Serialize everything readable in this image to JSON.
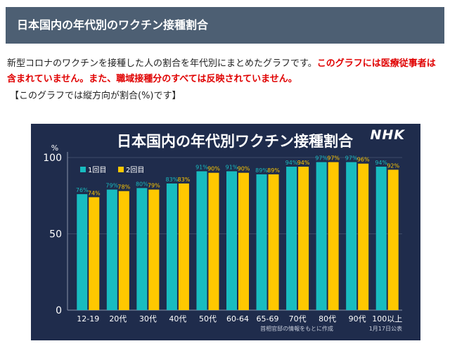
{
  "page": {
    "title": "日本国内の年代別のワクチン接種割合",
    "intro_text": "新型コロナのワクチンを接種した人の割合を年代別にまとめたグラフです。",
    "intro_warning": "このグラフには医療従事者は含まれていません。また、職域接種分のすべては反映されていません。",
    "note": "【このグラフでは縦方向が割合(%)です】"
  },
  "chart_data": {
    "type": "bar",
    "title": "日本国内の年代別ワクチン接種割合",
    "logo": "NHK",
    "ylabel": "%",
    "ylim": [
      0,
      100
    ],
    "yticks": [
      0,
      50,
      100
    ],
    "categories": [
      "12-19",
      "20代",
      "30代",
      "40代",
      "50代",
      "60-64",
      "65-69",
      "70代",
      "80代",
      "90代",
      "100以上"
    ],
    "series": [
      {
        "name": "1回目",
        "color": "#18bcc0",
        "values": [
          76,
          79,
          80,
          83,
          91,
          91,
          89,
          94,
          97,
          97,
          94
        ]
      },
      {
        "name": "2回目",
        "color": "#ffc800",
        "values": [
          74,
          78,
          79,
          83,
          90,
          90,
          89,
          94,
          97,
          96,
          92
        ]
      }
    ],
    "legend_position": "top-left",
    "source": "首相官邸の情報をもとに作成",
    "date": "1月17日公表"
  }
}
